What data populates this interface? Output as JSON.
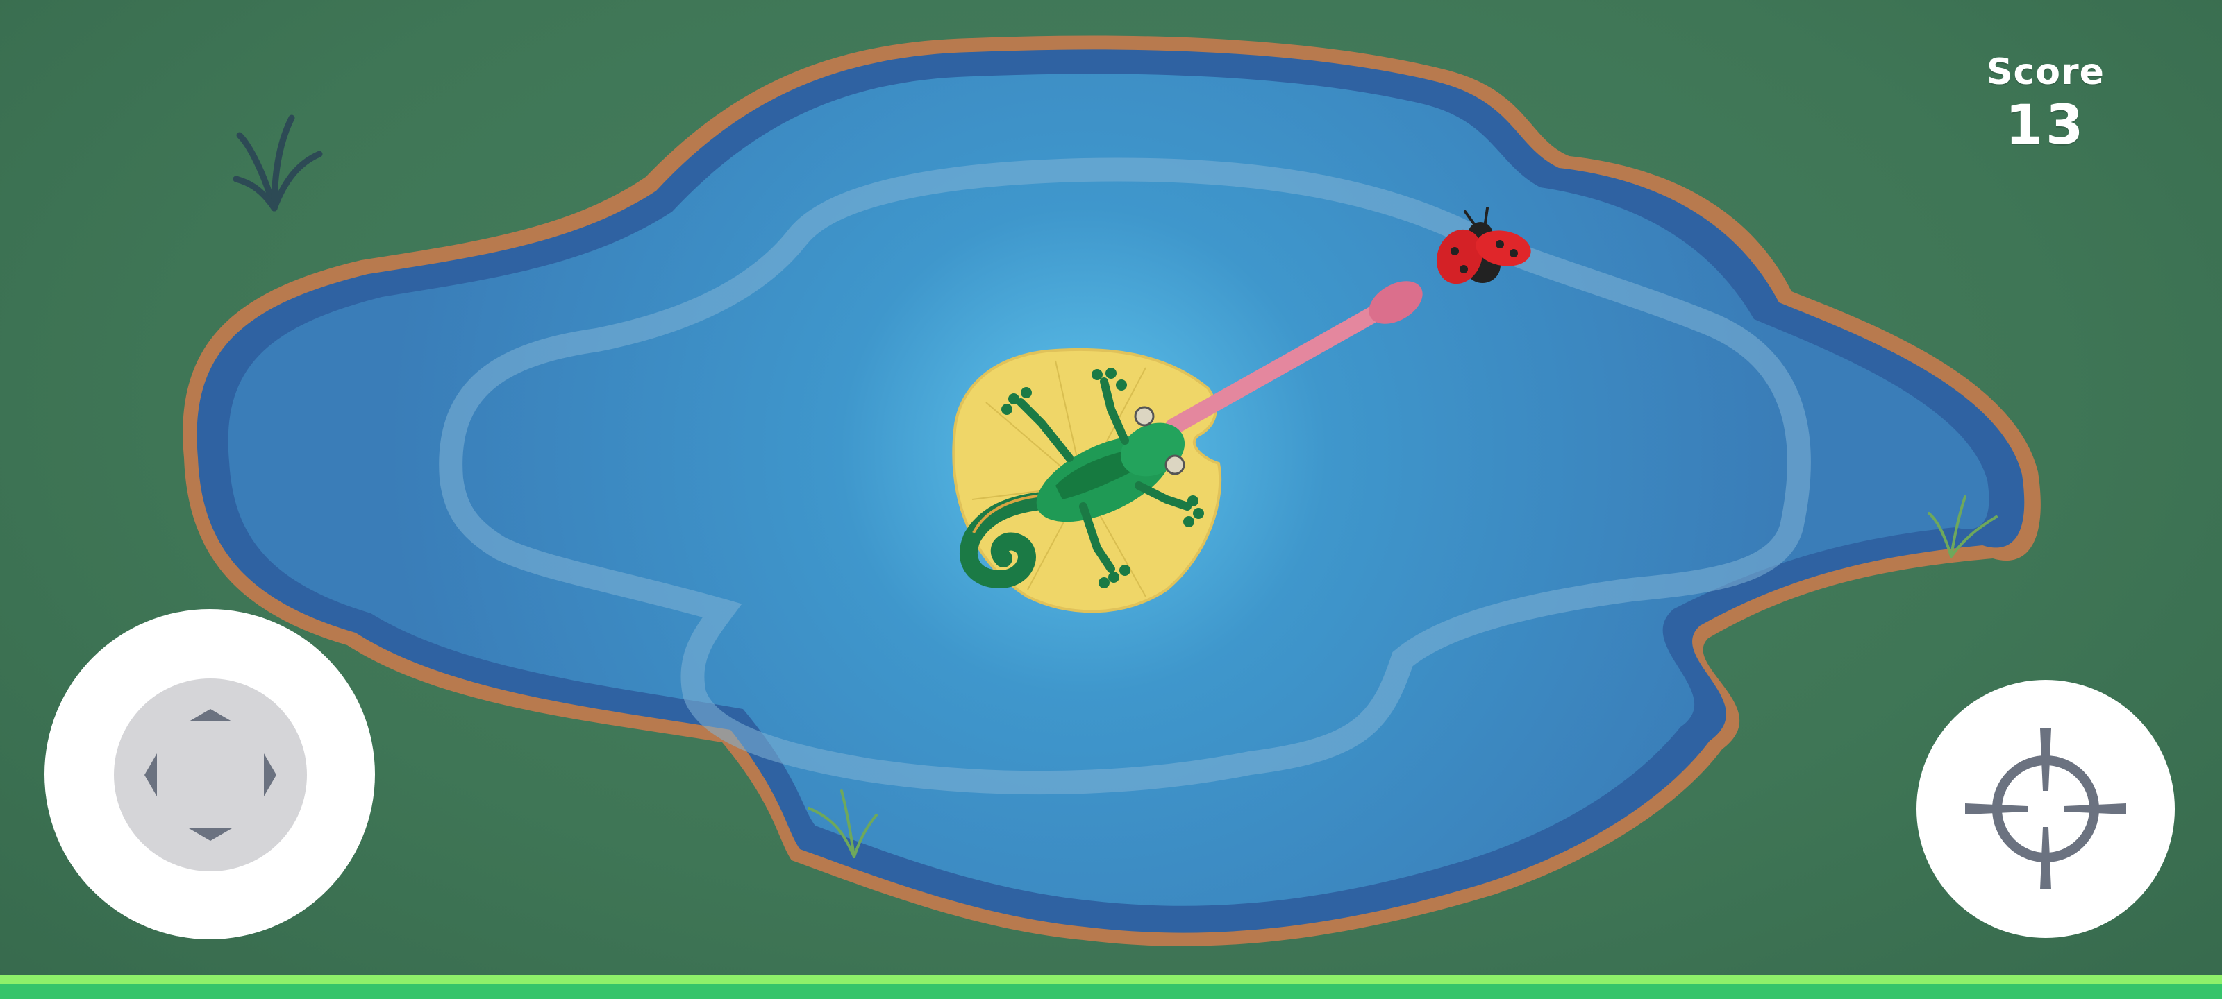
{
  "hud": {
    "score_label": "Score",
    "score_value": "13"
  },
  "controls": {
    "move_icon": "dpad-arrows-icon",
    "aim_icon": "crosshair-icon"
  },
  "colors": {
    "grass": "#46805f",
    "pond_rim": "#b87a4e",
    "pond_deep": "#2f62a2",
    "pond_water": "#4b8bc3",
    "lily_pad": "#efd668",
    "lizard": "#1f9a55",
    "tongue": "#e4879e",
    "ladybug": "#e0262a",
    "button_bg": "#ffffff",
    "icon_gray": "#6b7280",
    "ground_light": "#8ef06a",
    "ground_dark": "#35c46a"
  }
}
